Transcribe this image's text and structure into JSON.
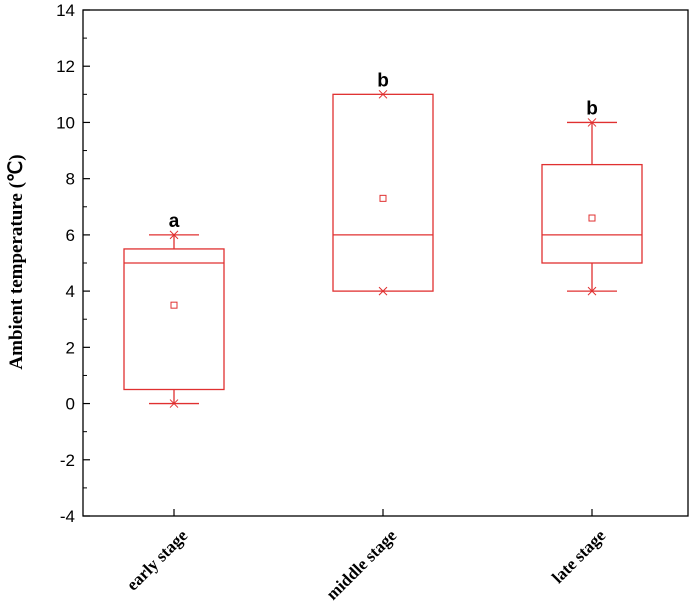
{
  "chart_data": {
    "type": "box",
    "ylabel": "Ambient temperature (℃)",
    "ylim": [
      -4,
      14
    ],
    "yticks": [
      -4,
      -2,
      0,
      2,
      4,
      6,
      8,
      10,
      12,
      14
    ],
    "ytick_labels": [
      "-4",
      "-2",
      "0",
      "2",
      "4",
      "6",
      "8",
      "10",
      "12",
      "14"
    ],
    "categories": [
      "early stage",
      "middle stage",
      "late stage"
    ],
    "boxes": [
      {
        "category": "early stage",
        "whisker_low": 0,
        "q1": 0.5,
        "median": 5,
        "q3": 5.5,
        "whisker_high": 6,
        "mean": 3.5,
        "min": 0,
        "max": 6,
        "significance": "a"
      },
      {
        "category": "middle stage",
        "whisker_low": 4,
        "q1": 4,
        "median": 6,
        "q3": 11,
        "whisker_high": 11,
        "mean": 7.3,
        "min": 4,
        "max": 11,
        "significance": "b"
      },
      {
        "category": "late stage",
        "whisker_low": 4,
        "q1": 5,
        "median": 6,
        "q3": 8.5,
        "whisker_high": 10,
        "mean": 6.6,
        "min": 4,
        "max": 10,
        "significance": "b"
      }
    ],
    "box_color": "#e03030",
    "grid": false
  }
}
